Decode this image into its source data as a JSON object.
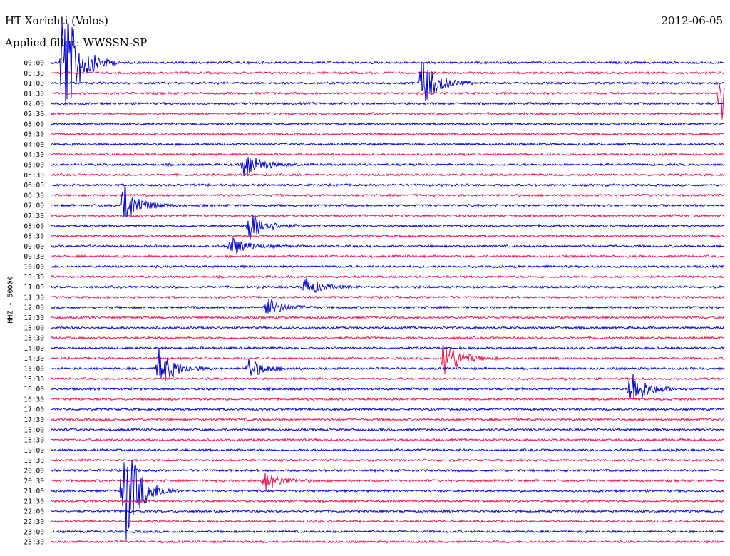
{
  "header": {
    "station": "HT Xorichti (Volos)",
    "date": "2012-06-05",
    "filter": "Applied filter: WWSSN-SP"
  },
  "colors": {
    "trace_a": "#0000d8",
    "trace_b": "#f0104c"
  },
  "chart_data": {
    "type": "line",
    "title": "HT Xorichti (Volos)",
    "ylabel": "HHZ - 50000",
    "xlabel": "",
    "time_labels": [
      "00:00",
      "00:30",
      "01:00",
      "01:30",
      "02:00",
      "02:30",
      "03:00",
      "03:30",
      "04:00",
      "04:30",
      "05:00",
      "05:30",
      "06:00",
      "06:30",
      "07:00",
      "07:30",
      "08:00",
      "08:30",
      "09:00",
      "09:30",
      "10:00",
      "10:30",
      "11:00",
      "11:30",
      "12:00",
      "12:30",
      "13:00",
      "13:30",
      "14:00",
      "14:30",
      "15:00",
      "15:30",
      "16:00",
      "16:30",
      "17:00",
      "17:30",
      "18:00",
      "18:30",
      "19:00",
      "19:30",
      "20:00",
      "20:30",
      "21:00",
      "21:30",
      "22:00",
      "22:30",
      "23:00",
      "23:30"
    ],
    "minutes_per_line": 30,
    "events": [
      {
        "line": 0,
        "minute": 0.5,
        "amplitude": 14
      },
      {
        "line": 2,
        "minute": 16.5,
        "amplitude": 5
      },
      {
        "line": 3,
        "minute": 29.8,
        "amplitude": 6
      },
      {
        "line": 10,
        "minute": 8.6,
        "amplitude": 3
      },
      {
        "line": 14,
        "minute": 3.2,
        "amplitude": 4
      },
      {
        "line": 16,
        "minute": 8.8,
        "amplitude": 3
      },
      {
        "line": 18,
        "minute": 8.0,
        "amplitude": 2
      },
      {
        "line": 22,
        "minute": 11.3,
        "amplitude": 2
      },
      {
        "line": 24,
        "minute": 9.6,
        "amplitude": 2
      },
      {
        "line": 29,
        "minute": 17.5,
        "amplitude": 4
      },
      {
        "line": 30,
        "minute": 4.8,
        "amplitude": 4
      },
      {
        "line": 30,
        "minute": 8.8,
        "amplitude": 2
      },
      {
        "line": 32,
        "minute": 25.8,
        "amplitude": 4
      },
      {
        "line": 41,
        "minute": 9.5,
        "amplitude": 2
      },
      {
        "line": 42,
        "minute": 3.2,
        "amplitude": 12
      }
    ]
  }
}
